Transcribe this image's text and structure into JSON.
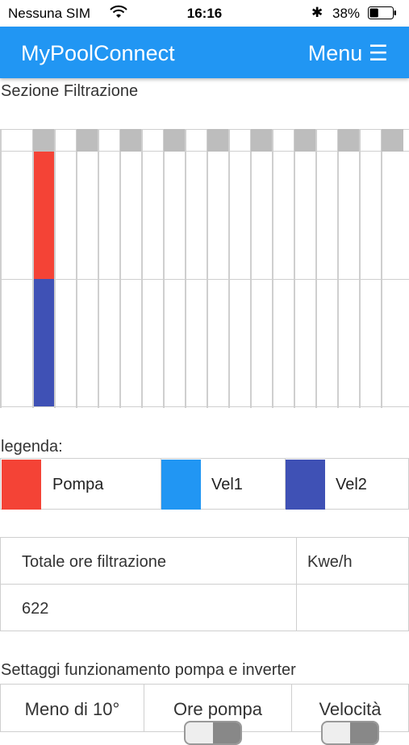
{
  "status_bar": {
    "carrier": "Nessuna SIM",
    "time": "16:16",
    "battery_percent": "38%",
    "battery_level": 0.38
  },
  "navbar": {
    "brand": "MyPoolConnect",
    "menu_label": "Menu ☰"
  },
  "filtration": {
    "section_title": "Sezione Filtrazione",
    "legend_label": "legenda:",
    "legend": [
      {
        "label": "Pompa",
        "color": "#f44336"
      },
      {
        "label": "Vel1",
        "color": "#2196f3"
      },
      {
        "label": "Vel2",
        "color": "#3f51b5"
      }
    ]
  },
  "totals": {
    "header_hours": "Totale ore filtrazione",
    "header_kwh": "Kwe/h",
    "value_hours": "622",
    "value_kwh": ""
  },
  "settings": {
    "section_title": "Settaggi funzionamento pompa e inverter",
    "columns": [
      "Meno di 10°",
      "Ore pompa",
      "Velocità"
    ]
  },
  "colors": {
    "accent": "#2196f3",
    "pompa": "#f44336",
    "vel1": "#2196f3",
    "vel2": "#3f51b5"
  }
}
